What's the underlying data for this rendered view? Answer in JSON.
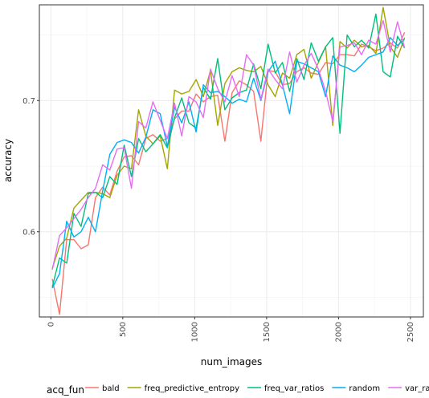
{
  "chart_data": {
    "type": "line",
    "title": "",
    "xlabel": "num_images",
    "ylabel": "accuracy",
    "xlim": [
      -80,
      2590
    ],
    "ylim": [
      0.535,
      0.773
    ],
    "x_ticks": [
      "0",
      "500",
      "1000",
      "1500",
      "2000",
      "2500"
    ],
    "x_tick_values": [
      0,
      500,
      1000,
      1500,
      2000,
      2500
    ],
    "y_ticks": [
      "0.6",
      "0.7"
    ],
    "y_tick_values": [
      0.6,
      0.7
    ],
    "grid": true,
    "legend": {
      "title": "acq_fun",
      "position": "bottom"
    },
    "x": [
      10,
      60,
      110,
      160,
      210,
      260,
      310,
      360,
      410,
      460,
      510,
      560,
      610,
      660,
      710,
      760,
      810,
      860,
      910,
      960,
      1010,
      1060,
      1110,
      1160,
      1210,
      1260,
      1310,
      1360,
      1410,
      1460,
      1510,
      1560,
      1610,
      1660,
      1710,
      1760,
      1810,
      1860,
      1910,
      1960,
      2010,
      2060,
      2110,
      2160,
      2210,
      2260,
      2310,
      2360,
      2410,
      2460
    ],
    "series": [
      {
        "name": "bald",
        "color": "#F8766D",
        "values": [
          0.564,
          0.537,
          0.594,
          0.594,
          0.587,
          0.59,
          0.626,
          0.634,
          0.628,
          0.646,
          0.657,
          0.658,
          0.651,
          0.671,
          0.674,
          0.669,
          0.671,
          0.686,
          0.692,
          0.692,
          0.705,
          0.699,
          0.703,
          0.704,
          0.669,
          0.706,
          0.715,
          0.712,
          0.707,
          0.669,
          0.723,
          0.722,
          0.712,
          0.713,
          0.722,
          0.725,
          0.721,
          0.72,
          0.729,
          0.728,
          0.735,
          0.735,
          0.734,
          0.743,
          0.741,
          0.738,
          0.74,
          0.744,
          0.74,
          0.752
        ]
      },
      {
        "name": "freq_predictive_entropy",
        "color": "#A3A500",
        "values": [
          0.572,
          0.589,
          0.595,
          0.618,
          0.624,
          0.63,
          0.63,
          0.629,
          0.626,
          0.643,
          0.65,
          0.648,
          0.693,
          0.673,
          0.667,
          0.673,
          0.648,
          0.708,
          0.705,
          0.707,
          0.716,
          0.703,
          0.723,
          0.681,
          0.713,
          0.722,
          0.725,
          0.723,
          0.722,
          0.726,
          0.712,
          0.703,
          0.721,
          0.717,
          0.735,
          0.739,
          0.717,
          0.729,
          0.741,
          0.681,
          0.745,
          0.74,
          0.746,
          0.741,
          0.742,
          0.736,
          0.771,
          0.741,
          0.733,
          0.748
        ]
      },
      {
        "name": "freq_var_ratios",
        "color": "#00BF7D",
        "values": [
          0.558,
          0.58,
          0.576,
          0.614,
          0.604,
          0.629,
          0.63,
          0.626,
          0.642,
          0.636,
          0.666,
          0.642,
          0.671,
          0.661,
          0.667,
          0.674,
          0.664,
          0.687,
          0.702,
          0.683,
          0.679,
          0.71,
          0.701,
          0.732,
          0.693,
          0.702,
          0.706,
          0.708,
          0.728,
          0.709,
          0.743,
          0.721,
          0.729,
          0.707,
          0.732,
          0.716,
          0.744,
          0.73,
          0.741,
          0.748,
          0.675,
          0.75,
          0.741,
          0.746,
          0.74,
          0.766,
          0.722,
          0.718,
          0.749,
          0.74
        ]
      },
      {
        "name": "random",
        "color": "#00B0F6",
        "values": [
          0.557,
          0.568,
          0.608,
          0.596,
          0.6,
          0.611,
          0.6,
          0.631,
          0.659,
          0.668,
          0.67,
          0.668,
          0.66,
          0.672,
          0.693,
          0.69,
          0.665,
          0.695,
          0.683,
          0.699,
          0.676,
          0.712,
          0.706,
          0.707,
          0.703,
          0.698,
          0.701,
          0.699,
          0.717,
          0.7,
          0.722,
          0.73,
          0.712,
          0.69,
          0.73,
          0.728,
          0.725,
          0.722,
          0.703,
          0.734,
          0.727,
          0.725,
          0.722,
          0.727,
          0.733,
          0.735,
          0.737,
          0.748,
          0.742,
          0.747
        ]
      },
      {
        "name": "var_ratios",
        "color": "#E76BF3",
        "values": [
          0.571,
          0.597,
          0.603,
          0.61,
          0.617,
          0.626,
          0.633,
          0.651,
          0.647,
          0.663,
          0.664,
          0.633,
          0.684,
          0.679,
          0.699,
          0.685,
          0.671,
          0.698,
          0.673,
          0.703,
          0.699,
          0.687,
          0.724,
          0.709,
          0.699,
          0.719,
          0.703,
          0.735,
          0.727,
          0.701,
          0.724,
          0.716,
          0.709,
          0.737,
          0.714,
          0.727,
          0.736,
          0.724,
          0.707,
          0.684,
          0.741,
          0.742,
          0.744,
          0.735,
          0.746,
          0.743,
          0.761,
          0.737,
          0.76,
          0.74
        ]
      }
    ]
  }
}
